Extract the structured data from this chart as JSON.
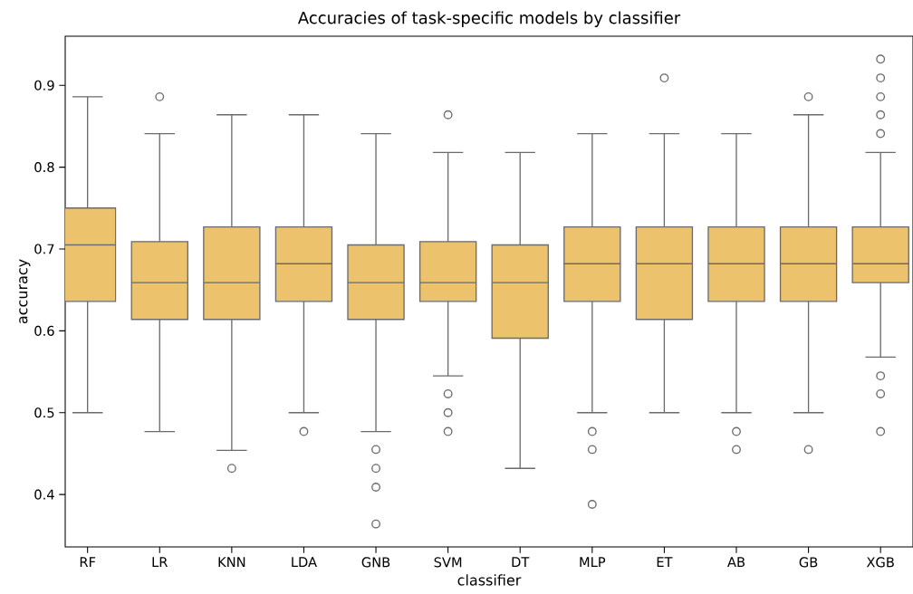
{
  "chart_data": {
    "type": "box",
    "title": "Accuracies of task-specific models by classifier",
    "xlabel": "classifier",
    "ylabel": "accuracy",
    "categories": [
      "RF",
      "LR",
      "KNN",
      "LDA",
      "GNB",
      "SVM",
      "DT",
      "MLP",
      "ET",
      "AB",
      "GB",
      "XGB"
    ],
    "ylim": [
      0.336,
      0.96
    ],
    "yticks": [
      0.4,
      0.5,
      0.6,
      0.7,
      0.8,
      0.9
    ],
    "series": [
      {
        "color": "#ecc36c",
        "boxes": [
          {
            "low": 0.5,
            "q1": 0.636,
            "median": 0.705,
            "q3": 0.75,
            "high": 0.886
          },
          {
            "low": 0.477,
            "q1": 0.614,
            "median": 0.659,
            "q3": 0.709,
            "high": 0.841,
            "outliers": [
              0.886
            ]
          },
          {
            "low": 0.454,
            "q1": 0.614,
            "median": 0.659,
            "q3": 0.727,
            "high": 0.864,
            "outliers": [
              0.432
            ]
          },
          {
            "low": 0.5,
            "q1": 0.636,
            "median": 0.682,
            "q3": 0.727,
            "high": 0.864,
            "outliers": [
              0.477
            ]
          },
          {
            "low": 0.477,
            "q1": 0.614,
            "median": 0.659,
            "q3": 0.705,
            "high": 0.841,
            "outliers": [
              0.455,
              0.432,
              0.409,
              0.364
            ]
          },
          {
            "low": 0.545,
            "q1": 0.636,
            "median": 0.659,
            "q3": 0.709,
            "high": 0.818,
            "outliers": [
              0.864,
              0.523,
              0.5,
              0.477
            ]
          },
          {
            "low": 0.432,
            "q1": 0.591,
            "median": 0.659,
            "q3": 0.705,
            "high": 0.818
          },
          {
            "low": 0.5,
            "q1": 0.636,
            "median": 0.682,
            "q3": 0.727,
            "high": 0.841,
            "outliers": [
              0.477,
              0.455,
              0.388
            ]
          },
          {
            "low": 0.5,
            "q1": 0.614,
            "median": 0.682,
            "q3": 0.727,
            "high": 0.841,
            "outliers": [
              0.909
            ]
          },
          {
            "low": 0.5,
            "q1": 0.636,
            "median": 0.682,
            "q3": 0.727,
            "high": 0.841,
            "outliers": [
              0.477,
              0.455
            ]
          },
          {
            "low": 0.5,
            "q1": 0.636,
            "median": 0.682,
            "q3": 0.727,
            "high": 0.864,
            "outliers": [
              0.886,
              0.455
            ]
          },
          {
            "low": 0.568,
            "q1": 0.659,
            "median": 0.682,
            "q3": 0.727,
            "high": 0.818,
            "outliers": [
              0.932,
              0.909,
              0.886,
              0.864,
              0.841,
              0.545,
              0.523,
              0.477
            ]
          }
        ]
      }
    ]
  }
}
